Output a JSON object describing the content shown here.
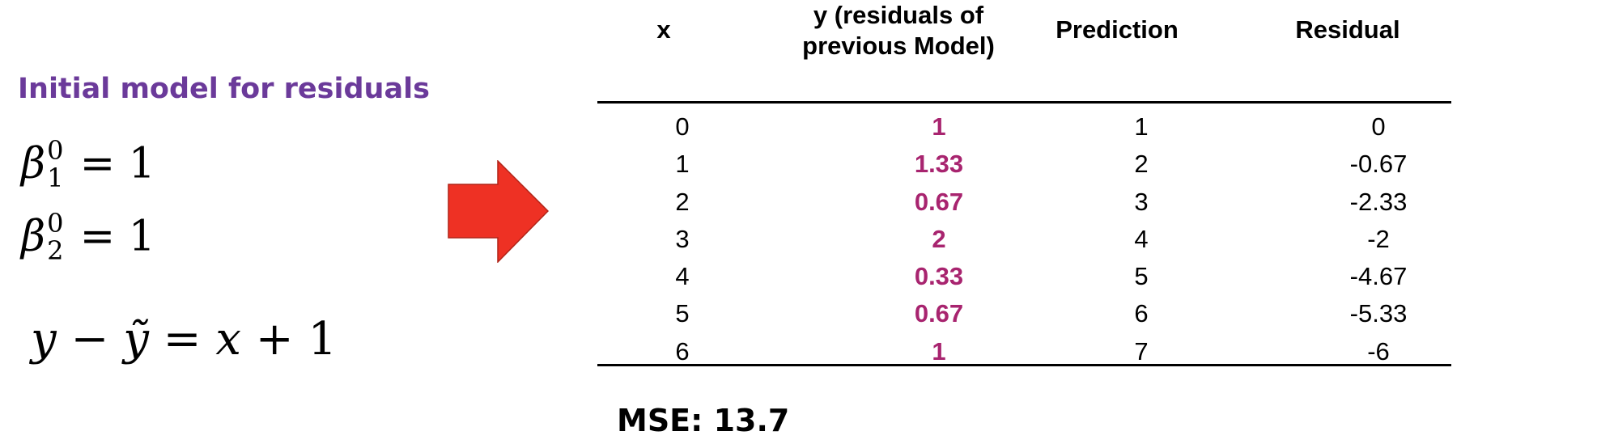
{
  "left_panel": {
    "heading": "Initial model for residuals",
    "heading_color": "#6b3a9a",
    "beta1": {
      "symbol": "β",
      "superscript": "0",
      "subscript": "1",
      "equals": "=",
      "value": "1"
    },
    "beta2": {
      "symbol": "β",
      "superscript": "0",
      "subscript": "2",
      "equals": "=",
      "value": "1"
    },
    "equation": {
      "lhs_y": "y",
      "minus": "−",
      "lhs_ytilde": "ỹ",
      "equals": "=",
      "rhs_x": "x",
      "plus": "+",
      "rhs_const": "1"
    }
  },
  "arrow": {
    "icon": "right-arrow-icon",
    "color": "#ee3124"
  },
  "table": {
    "headers": {
      "x": "x",
      "y_line1": "y (residuals of",
      "y_line2": "previous Model)",
      "prediction": "Prediction",
      "residual": "Residual"
    },
    "y_color": "#a8246f",
    "rows": [
      {
        "x": "0",
        "y": "1",
        "prediction": "1",
        "residual": "0"
      },
      {
        "x": "1",
        "y": "1.33",
        "prediction": "2",
        "residual": "-0.67"
      },
      {
        "x": "2",
        "y": "0.67",
        "prediction": "3",
        "residual": "-2.33"
      },
      {
        "x": "3",
        "y": "2",
        "prediction": "4",
        "residual": "-2"
      },
      {
        "x": "4",
        "y": "0.33",
        "prediction": "5",
        "residual": "-4.67"
      },
      {
        "x": "5",
        "y": "0.67",
        "prediction": "6",
        "residual": "-5.33"
      },
      {
        "x": "6",
        "y": "1",
        "prediction": "7",
        "residual": "-6"
      }
    ]
  },
  "mse": "MSE: 13.7"
}
